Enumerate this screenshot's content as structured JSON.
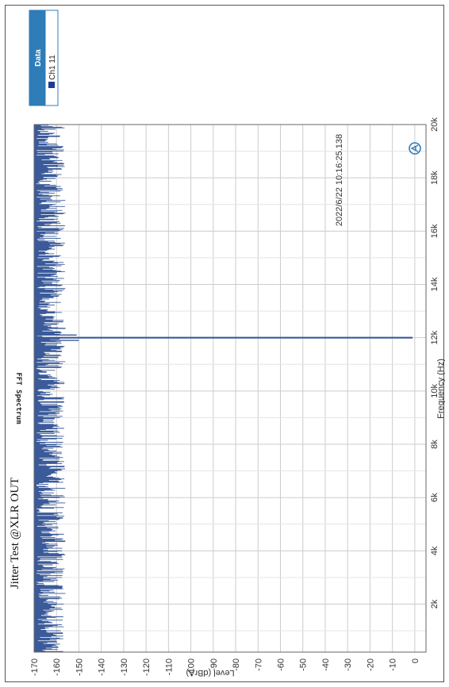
{
  "chart_data": {
    "type": "line",
    "title": "FFT Spectrum",
    "subtitle": "Jitter Test @XLR OUT",
    "timestamp": "2022/6/22 10:16:25.138",
    "xlabel": "Frequency (Hz)",
    "ylabel": "Level (dBrA)",
    "xlim": [
      200,
      20000
    ],
    "ylim": [
      -170,
      5
    ],
    "x_ticks": [
      {
        "value": 2000,
        "label": "2k"
      },
      {
        "value": 4000,
        "label": "4k"
      },
      {
        "value": 6000,
        "label": "6k"
      },
      {
        "value": 8000,
        "label": "8k"
      },
      {
        "value": 10000,
        "label": "10k"
      },
      {
        "value": 12000,
        "label": "12k"
      },
      {
        "value": 14000,
        "label": "14k"
      },
      {
        "value": 16000,
        "label": "16k"
      },
      {
        "value": 18000,
        "label": "18k"
      },
      {
        "value": 20000,
        "label": "20k"
      }
    ],
    "y_ticks": [
      {
        "value": 0,
        "label": "0"
      },
      {
        "value": -10,
        "label": "-10"
      },
      {
        "value": -20,
        "label": "-20"
      },
      {
        "value": -30,
        "label": "-30"
      },
      {
        "value": -40,
        "label": "-40"
      },
      {
        "value": -50,
        "label": "-50"
      },
      {
        "value": -60,
        "label": "-60"
      },
      {
        "value": -70,
        "label": "-70"
      },
      {
        "value": -80,
        "label": "-80"
      },
      {
        "value": -90,
        "label": "-90"
      },
      {
        "value": -100,
        "label": "-100"
      },
      {
        "value": -110,
        "label": "-110"
      },
      {
        "value": -120,
        "label": "-120"
      },
      {
        "value": -130,
        "label": "-130"
      },
      {
        "value": -140,
        "label": "-140"
      },
      {
        "value": -150,
        "label": "-150"
      },
      {
        "value": -160,
        "label": "-160"
      },
      {
        "value": -170,
        "label": "-170"
      }
    ],
    "grid": true,
    "legend_position": "top-right",
    "legend": {
      "title": "Data",
      "entries": [
        {
          "name": "Ch1 11",
          "color": "#1f3a93"
        }
      ]
    },
    "series": [
      {
        "name": "Ch1 11",
        "color": "#3a5a9a",
        "noise_floor_db": -163,
        "noise_peak_db": -156,
        "peaks": [
          {
            "x": 11990,
            "y": -1
          },
          {
            "x": 12010,
            "y": -1
          },
          {
            "x": 11900,
            "y": -150
          },
          {
            "x": 12100,
            "y": -151
          },
          {
            "x": 11650,
            "y": -157
          },
          {
            "x": 12350,
            "y": -156
          },
          {
            "x": 12600,
            "y": -157
          }
        ]
      }
    ]
  },
  "colors": {
    "accent": "#2e7cb8",
    "trace": "#3a5a9a",
    "grid": "#cccccc",
    "logo": "#2e7cb8"
  },
  "icons": {
    "logo": "ap-logo-icon"
  }
}
